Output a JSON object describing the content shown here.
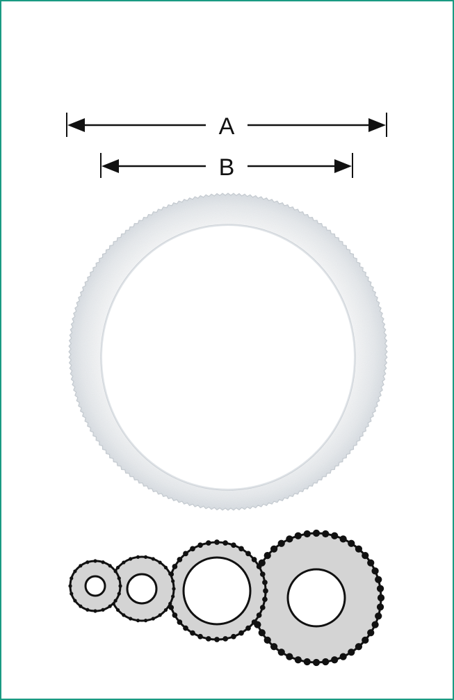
{
  "dimensions": {
    "outer_label": "A",
    "inner_label": "B"
  },
  "colors": {
    "frame": "#1a9a82",
    "ring_fill": "#eef0f2",
    "ring_edge": "#c9ced4",
    "gear_fill": "#d4d4d4",
    "gear_stroke": "#111111",
    "arrow": "#111111"
  },
  "gear_lineup": {
    "count": 4
  }
}
